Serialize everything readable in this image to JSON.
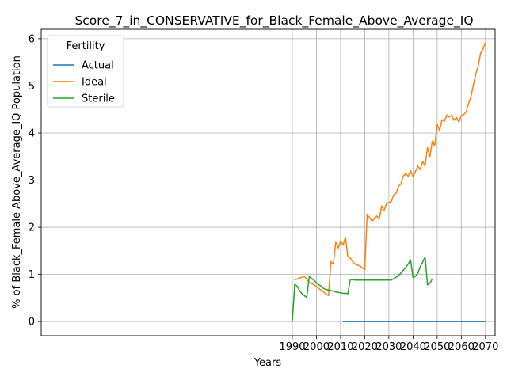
{
  "chart_data": {
    "type": "line",
    "title": "Score_7_in_CONSERVATIVE_for_Black_Female_Above_Average_IQ",
    "xlabel": "Years",
    "ylabel": "% of Black_Female Above_Average_IQ Population",
    "xlim": [
      1886,
      2074
    ],
    "ylim": [
      -0.3,
      6.2
    ],
    "xticks": [
      1990,
      2000,
      2010,
      2020,
      2030,
      2040,
      2050,
      2060,
      2070
    ],
    "yticks": [
      0,
      1,
      2,
      3,
      4,
      5,
      6
    ],
    "grid": true,
    "legend": {
      "title": "Fertility",
      "position": "top-left"
    },
    "series": [
      {
        "name": "Actual",
        "color": "#1f77b4",
        "x": [
          2011,
          2070
        ],
        "y": [
          0.0,
          0.0
        ]
      },
      {
        "name": "Ideal",
        "color": "#ff7f0e",
        "x": [
          1991,
          1995,
          1996,
          1997,
          1999,
          2001,
          2003,
          2004,
          2005,
          2006,
          2007,
          2008,
          2009,
          2010,
          2011,
          2012,
          2013,
          2014,
          2015,
          2016,
          2017,
          2018,
          2019,
          2020,
          2021,
          2022,
          2023,
          2024,
          2025,
          2026,
          2027,
          2028,
          2029,
          2030,
          2031,
          2032,
          2033,
          2034,
          2035,
          2036,
          2037,
          2038,
          2039,
          2040,
          2041,
          2042,
          2043,
          2044,
          2045,
          2046,
          2047,
          2048,
          2049,
          2050,
          2051,
          2052,
          2053,
          2054,
          2055,
          2056,
          2057,
          2058,
          2059,
          2060,
          2061,
          2062,
          2063,
          2064,
          2065,
          2066,
          2067,
          2068,
          2069,
          2070
        ],
        "y": [
          0.88,
          0.96,
          0.9,
          0.83,
          0.78,
          0.7,
          0.63,
          0.58,
          0.55,
          1.27,
          1.22,
          1.68,
          1.56,
          1.71,
          1.62,
          1.79,
          1.38,
          1.35,
          1.27,
          1.22,
          1.2,
          1.18,
          1.14,
          1.1,
          2.28,
          2.2,
          2.13,
          2.18,
          2.24,
          2.17,
          2.45,
          2.35,
          2.5,
          2.53,
          2.54,
          2.69,
          2.72,
          2.87,
          2.92,
          3.09,
          3.14,
          3.08,
          3.2,
          3.07,
          3.18,
          3.3,
          3.22,
          3.4,
          3.3,
          3.69,
          3.5,
          3.83,
          3.73,
          4.18,
          4.05,
          4.28,
          4.25,
          4.38,
          4.34,
          4.38,
          4.27,
          4.33,
          4.23,
          4.37,
          4.39,
          4.45,
          4.63,
          4.77,
          5.02,
          5.25,
          5.42,
          5.7,
          5.78,
          5.92
        ]
      },
      {
        "name": "Sterile",
        "color": "#2ca02c",
        "x": [
          1990,
          1991,
          1992,
          1993,
          1994,
          1995,
          1996,
          1997,
          1998,
          1999,
          2000,
          2001,
          2002,
          2003,
          2004,
          2005,
          2006,
          2007,
          2008,
          2009,
          2010,
          2011,
          2012,
          2013,
          2014,
          2015,
          2016,
          2020,
          2025,
          2031,
          2032,
          2033,
          2034,
          2035,
          2036,
          2037,
          2038,
          2039,
          2040,
          2041,
          2042,
          2043,
          2044,
          2045,
          2046,
          2047,
          2048
        ],
        "y": [
          0.0,
          0.79,
          0.75,
          0.66,
          0.59,
          0.55,
          0.51,
          0.95,
          0.92,
          0.87,
          0.82,
          0.78,
          0.75,
          0.7,
          0.68,
          0.67,
          0.66,
          0.64,
          0.63,
          0.62,
          0.61,
          0.6,
          0.6,
          0.59,
          0.89,
          0.89,
          0.88,
          0.88,
          0.88,
          0.88,
          0.91,
          0.94,
          0.98,
          1.03,
          1.09,
          1.15,
          1.22,
          1.31,
          0.93,
          0.96,
          1.03,
          1.16,
          1.26,
          1.37,
          0.78,
          0.81,
          0.91
        ]
      }
    ]
  }
}
